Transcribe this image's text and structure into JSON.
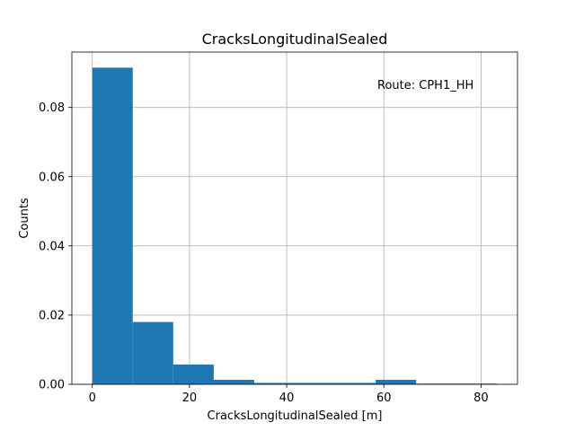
{
  "chart_data": {
    "type": "bar",
    "title": "CracksLongitudinalSealed",
    "xlabel": "CracksLongitudinalSealed [m]",
    "ylabel": "Counts",
    "annotation": "Route: CPH1_HH",
    "xlim": [
      -4.2,
      87.5
    ],
    "ylim": [
      0,
      0.096
    ],
    "xticks": [
      0,
      20,
      40,
      60,
      80
    ],
    "xtick_labels": [
      "0",
      "20",
      "40",
      "60",
      "80"
    ],
    "yticks": [
      0,
      0.02,
      0.04,
      0.06,
      0.08
    ],
    "ytick_labels": [
      "0.00",
      "0.02",
      "0.04",
      "0.06",
      "0.08"
    ],
    "grid": true,
    "bar_color": "#1f77b4",
    "bin_edges": [
      0.0,
      8.33,
      16.66,
      24.99,
      33.32,
      41.65,
      49.98,
      58.31,
      66.64,
      74.97,
      83.3
    ],
    "values": [
      0.0915,
      0.018,
      0.0057,
      0.0013,
      0.0004,
      0.0004,
      0.0004,
      0.0013,
      0.0002,
      0.0002
    ]
  }
}
